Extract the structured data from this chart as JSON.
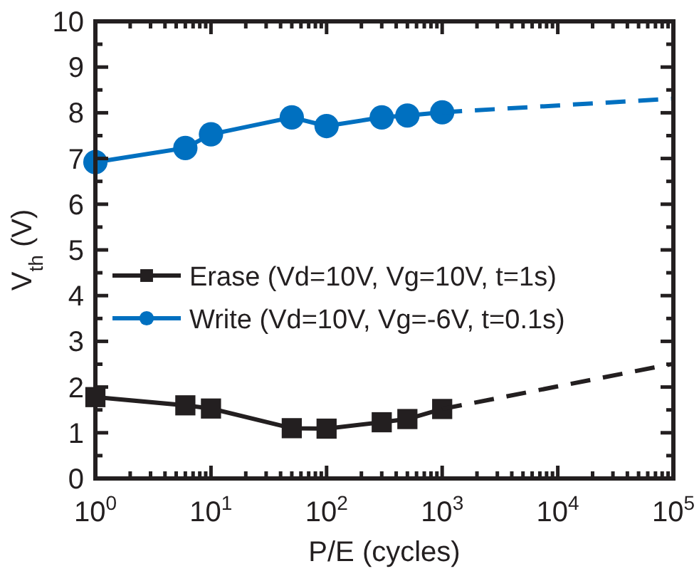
{
  "chart_data": {
    "type": "line",
    "xlabel": "P/E (cycles)",
    "ylabel": "V$_{th}$ (V)",
    "log": "x",
    "xlim": [
      1,
      100000
    ],
    "ylim": [
      0,
      10
    ],
    "xticks": [
      {
        "value": 1,
        "label": "10$^{0}$"
      },
      {
        "value": 2,
        "label": null
      },
      {
        "value": 3,
        "label": null
      },
      {
        "value": 4,
        "label": null
      },
      {
        "value": 5,
        "label": null
      },
      {
        "value": 6,
        "label": null
      },
      {
        "value": 7,
        "label": null
      },
      {
        "value": 8,
        "label": null
      },
      {
        "value": 9,
        "label": null
      },
      {
        "value": 10,
        "label": "10$^{1}$"
      },
      {
        "value": 20,
        "label": null
      },
      {
        "value": 30,
        "label": null
      },
      {
        "value": 40,
        "label": null
      },
      {
        "value": 50,
        "label": null
      },
      {
        "value": 60,
        "label": null
      },
      {
        "value": 70,
        "label": null
      },
      {
        "value": 80,
        "label": null
      },
      {
        "value": 90,
        "label": null
      },
      {
        "value": 100,
        "label": "10$^{2}$"
      },
      {
        "value": 200,
        "label": null
      },
      {
        "value": 300,
        "label": null
      },
      {
        "value": 400,
        "label": null
      },
      {
        "value": 500,
        "label": null
      },
      {
        "value": 600,
        "label": null
      },
      {
        "value": 700,
        "label": null
      },
      {
        "value": 800,
        "label": null
      },
      {
        "value": 900,
        "label": null
      },
      {
        "value": 1000,
        "label": "10$^{3}$"
      },
      {
        "value": 2000,
        "label": null
      },
      {
        "value": 3000,
        "label": null
      },
      {
        "value": 4000,
        "label": null
      },
      {
        "value": 5000,
        "label": null
      },
      {
        "value": 6000,
        "label": null
      },
      {
        "value": 7000,
        "label": null
      },
      {
        "value": 8000,
        "label": null
      },
      {
        "value": 9000,
        "label": null
      },
      {
        "value": 10000,
        "label": "10$^{4}$"
      },
      {
        "value": 20000,
        "label": null
      },
      {
        "value": 30000,
        "label": null
      },
      {
        "value": 40000,
        "label": null
      },
      {
        "value": 50000,
        "label": null
      },
      {
        "value": 60000,
        "label": null
      },
      {
        "value": 70000,
        "label": null
      },
      {
        "value": 80000,
        "label": null
      },
      {
        "value": 90000,
        "label": null
      },
      {
        "value": 100000,
        "label": "10$^{5}$"
      }
    ],
    "yticks": [
      0,
      {
        "value": 0.5,
        "label": null
      },
      1,
      {
        "value": 1.5,
        "label": null
      },
      2,
      {
        "value": 2.5,
        "label": null
      },
      3,
      {
        "value": 3.5,
        "label": null
      },
      4,
      {
        "value": 4.5,
        "label": null
      },
      5,
      {
        "value": 5.5,
        "label": null
      },
      6,
      {
        "value": 6.5,
        "label": null
      },
      7,
      {
        "value": 7.5,
        "label": null
      },
      8,
      {
        "value": 8.5,
        "label": null
      },
      9,
      {
        "value": 9.5,
        "label": null
      },
      10
    ],
    "grid": false,
    "legend": "left",
    "series": [
      {
        "name": "Erase (Vd=10V, Vg=10V, t=1s)",
        "color": "#231f20",
        "marker": "square",
        "line_style": "solid",
        "x": [
          1,
          6,
          10,
          50,
          100,
          300,
          500,
          1000
        ],
        "values": [
          1.78,
          1.6,
          1.53,
          1.1,
          1.09,
          1.23,
          1.3,
          1.52
        ]
      },
      {
        "name": "Write (Vd=10V, Vg=-6V, t=0.1s)",
        "color": "#0070c0",
        "marker": "circle",
        "line_style": "solid",
        "x": [
          1,
          6,
          10,
          50,
          100,
          300,
          500,
          1000
        ],
        "values": [
          6.92,
          7.23,
          7.53,
          7.9,
          7.71,
          7.9,
          7.94,
          8.01
        ]
      },
      {
        "color": "#231f20",
        "marker": "none",
        "line_style": "dashed",
        "x": [
          1000,
          100000
        ],
        "values": [
          1.52,
          2.51
        ]
      },
      {
        "color": "#0070c0",
        "marker": "none",
        "line_style": "dashed",
        "x": [
          1000,
          100000
        ],
        "values": [
          8.01,
          8.31
        ]
      }
    ]
  }
}
